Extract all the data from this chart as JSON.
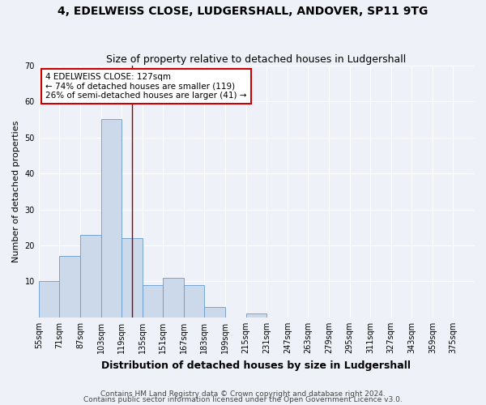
{
  "title": "4, EDELWEISS CLOSE, LUDGERSHALL, ANDOVER, SP11 9TG",
  "subtitle": "Size of property relative to detached houses in Ludgershall",
  "xlabel": "Distribution of detached houses by size in Ludgershall",
  "ylabel": "Number of detached properties",
  "bin_labels": [
    "55sqm",
    "71sqm",
    "87sqm",
    "103sqm",
    "119sqm",
    "135sqm",
    "151sqm",
    "167sqm",
    "183sqm",
    "199sqm",
    "215sqm",
    "231sqm",
    "247sqm",
    "263sqm",
    "279sqm",
    "295sqm",
    "311sqm",
    "327sqm",
    "343sqm",
    "359sqm",
    "375sqm"
  ],
  "bin_edges": [
    55,
    71,
    87,
    103,
    119,
    135,
    151,
    167,
    183,
    199,
    215,
    231,
    247,
    263,
    279,
    295,
    311,
    327,
    343,
    359,
    375
  ],
  "counts": [
    10,
    17,
    23,
    55,
    22,
    9,
    11,
    9,
    3,
    0,
    1,
    0,
    0,
    0,
    0,
    0,
    0,
    0,
    0,
    0,
    0
  ],
  "bar_color": "#ccd9ea",
  "bar_edge_color": "#6699cc",
  "vline_x": 127,
  "vline_color": "#8b0000",
  "annotation_line1": "4 EDELWEISS CLOSE: 127sqm",
  "annotation_line2": "← 74% of detached houses are smaller (119)",
  "annotation_line3": "26% of semi-detached houses are larger (41) →",
  "annotation_box_color": "white",
  "annotation_box_edgecolor": "#cc0000",
  "ylim": [
    0,
    70
  ],
  "yticks": [
    0,
    10,
    20,
    30,
    40,
    50,
    60,
    70
  ],
  "footer1": "Contains HM Land Registry data © Crown copyright and database right 2024.",
  "footer2": "Contains public sector information licensed under the Open Government Licence v3.0.",
  "bg_color": "#eef2f8",
  "plot_bg_color": "#eef2f8",
  "grid_color": "#ffffff",
  "title_fontsize": 10,
  "subtitle_fontsize": 9,
  "axis_label_fontsize": 8,
  "tick_fontsize": 7,
  "annotation_fontsize": 7.5,
  "footer_fontsize": 6.5
}
